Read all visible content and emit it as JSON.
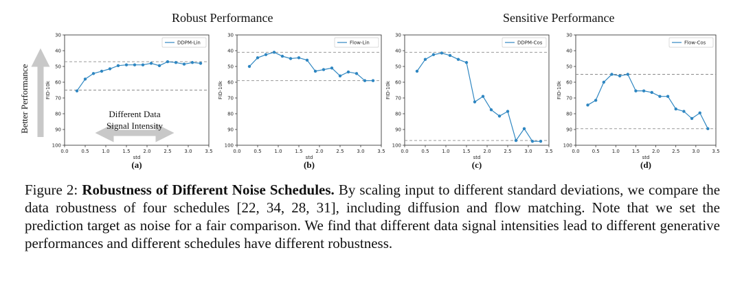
{
  "group_titles": [
    "Robust Performance",
    "Sensitive Performance"
  ],
  "annotations": {
    "better_performance": "Better Performance",
    "signal_line1": "Different Data",
    "signal_line2": "Signal Intensity"
  },
  "caption": {
    "figure_label": "Figure 2:",
    "bold_title": "Robustness of Different Noise Schedules.",
    "text": "By scaling input to different standard deviations, we compare the data robustness of four schedules [22, 34, 28, 31], including diffusion and flow matching. Note that we set the prediction target as noise for a fair comparison. We find that different data signal intensities lead to different generative performances and different schedules have different robustness."
  },
  "colors": {
    "line": "#2e86c1",
    "dashed": "#888888",
    "arrow": "#c8c8c8"
  },
  "chart_data": [
    {
      "type": "line",
      "sublabel": "(a)",
      "xlabel": "std",
      "ylabel": "FID-10k",
      "xlim": [
        0.0,
        3.5
      ],
      "ylim": [
        30,
        100
      ],
      "y_inverted": true,
      "xticks": [
        "0.0",
        "0.5",
        "1.0",
        "1.5",
        "2.0",
        "2.5",
        "3.0",
        "3.5"
      ],
      "yticks": [
        "30",
        "40",
        "50",
        "60",
        "70",
        "80",
        "90",
        "100"
      ],
      "legend": "top-right",
      "series": [
        {
          "name": "DDPM-Lin",
          "x": [
            0.3,
            0.5,
            0.7,
            0.9,
            1.1,
            1.3,
            1.5,
            1.7,
            1.9,
            2.1,
            2.3,
            2.5,
            2.7,
            2.9,
            3.1,
            3.3
          ],
          "y": [
            65.5,
            58,
            54.5,
            53,
            51.5,
            49.5,
            49,
            49,
            49,
            48,
            49.5,
            47,
            47.5,
            48.5,
            47.5,
            48
          ]
        }
      ],
      "hlines": [
        47,
        65
      ]
    },
    {
      "type": "line",
      "sublabel": "(b)",
      "xlabel": "std",
      "ylabel": "FID-10k",
      "xlim": [
        0.0,
        3.5
      ],
      "ylim": [
        30,
        100
      ],
      "y_inverted": true,
      "xticks": [
        "0.0",
        "0.5",
        "1.0",
        "1.5",
        "2.0",
        "2.5",
        "3.0",
        "3.5"
      ],
      "yticks": [
        "30",
        "40",
        "50",
        "60",
        "70",
        "80",
        "90",
        "100"
      ],
      "legend": "top-right",
      "series": [
        {
          "name": "Flow-Lin",
          "x": [
            0.3,
            0.5,
            0.7,
            0.9,
            1.1,
            1.3,
            1.5,
            1.7,
            1.9,
            2.1,
            2.3,
            2.5,
            2.7,
            2.9,
            3.1,
            3.3
          ],
          "y": [
            50,
            44.5,
            42.5,
            41,
            43.5,
            45,
            44.5,
            46,
            53,
            52,
            51,
            56,
            53.5,
            54.5,
            59,
            59
          ]
        }
      ],
      "hlines": [
        41,
        59
      ]
    },
    {
      "type": "line",
      "sublabel": "(c)",
      "xlabel": "std",
      "ylabel": "FID-10k",
      "xlim": [
        0.0,
        3.5
      ],
      "ylim": [
        30,
        100
      ],
      "y_inverted": true,
      "xticks": [
        "0.0",
        "0.5",
        "1.0",
        "1.5",
        "2.0",
        "2.5",
        "3.0",
        "3.5"
      ],
      "yticks": [
        "30",
        "40",
        "50",
        "60",
        "70",
        "80",
        "90",
        "100"
      ],
      "legend": "top-right",
      "series": [
        {
          "name": "DDPM-Cos",
          "x": [
            0.3,
            0.5,
            0.7,
            0.9,
            1.1,
            1.3,
            1.5,
            1.7,
            1.9,
            2.1,
            2.3,
            2.5,
            2.7,
            2.9,
            3.1,
            3.3
          ],
          "y": [
            53,
            45.5,
            42.5,
            41.5,
            43,
            45.5,
            47.5,
            72.5,
            69,
            77.5,
            81.5,
            78.5,
            97,
            89.5,
            97.5,
            97.5
          ]
        }
      ],
      "hlines": [
        41,
        97
      ]
    },
    {
      "type": "line",
      "sublabel": "(d)",
      "xlabel": "std",
      "ylabel": "FID-10k",
      "xlim": [
        0.0,
        3.5
      ],
      "ylim": [
        30,
        100
      ],
      "y_inverted": true,
      "xticks": [
        "0.0",
        "0.5",
        "1.0",
        "1.5",
        "2.0",
        "2.5",
        "3.0",
        "3.5"
      ],
      "yticks": [
        "30",
        "40",
        "50",
        "60",
        "70",
        "80",
        "90",
        "100"
      ],
      "legend": "top-right",
      "series": [
        {
          "name": "Flow-Cos",
          "x": [
            0.3,
            0.5,
            0.7,
            0.9,
            1.1,
            1.3,
            1.5,
            1.7,
            1.9,
            2.1,
            2.3,
            2.5,
            2.7,
            2.9,
            3.1,
            3.3
          ],
          "y": [
            74.5,
            71.5,
            60,
            55,
            56,
            55,
            65.5,
            65.5,
            66.5,
            69,
            69,
            77,
            78.5,
            83,
            79.5,
            89.5
          ]
        }
      ],
      "hlines": [
        55,
        89.5
      ]
    }
  ]
}
